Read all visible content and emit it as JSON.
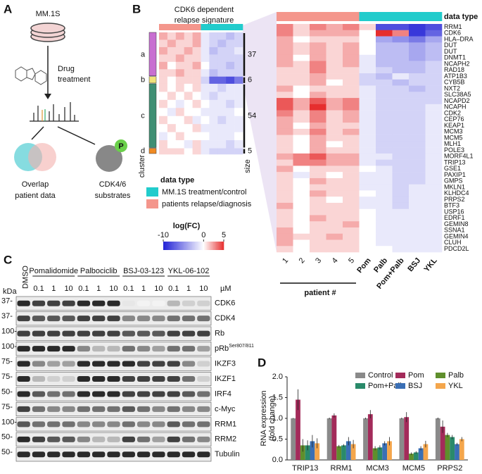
{
  "panels": [
    "A",
    "B",
    "C",
    "D"
  ],
  "panel_a": {
    "cells": "MM.1S",
    "treatment": [
      "Drug",
      "treatment"
    ],
    "overlap": [
      "Overlap",
      "patient data"
    ],
    "substrates": [
      "CDK4/6",
      "substrates"
    ],
    "phospho": "P"
  },
  "overview": {
    "title": [
      "CDK6 dependent",
      "relapse signature"
    ],
    "cluster_label": "cluster",
    "size_label": "size",
    "clusters": [
      {
        "label": "a",
        "size": 37,
        "color": "#c86fd1",
        "rows": [
          [
            2,
            1,
            2,
            1,
            2,
            -1,
            -2,
            -2,
            -3,
            -2
          ],
          [
            1,
            2,
            1,
            1,
            2,
            -1,
            -2,
            -3,
            -2,
            -2
          ],
          [
            2,
            1,
            1,
            2,
            1,
            -1,
            -3,
            -2,
            -2,
            -1
          ],
          [
            1,
            1,
            2,
            1,
            1,
            -1,
            -2,
            -2,
            -2,
            -2
          ],
          [
            2,
            0,
            1,
            1,
            2,
            0,
            -2,
            -2,
            -3,
            -2
          ],
          [
            1,
            1,
            2,
            1,
            1,
            -1,
            -3,
            -2,
            -2,
            -2
          ]
        ]
      },
      {
        "label": "b",
        "size": 6,
        "color": "#f1e27a",
        "rows": [
          [
            1,
            0,
            1,
            1,
            1,
            -2,
            -7,
            -7,
            -8,
            -6
          ]
        ]
      },
      {
        "label": "c",
        "size": 54,
        "color": "#3f8f73",
        "rows": [
          [
            1,
            0,
            1,
            0,
            1,
            -1,
            -1,
            -2,
            -1,
            -1
          ],
          [
            0,
            1,
            0,
            1,
            0,
            -1,
            -2,
            -1,
            -1,
            -1
          ],
          [
            1,
            0,
            -1,
            0,
            1,
            0,
            -1,
            -1,
            -2,
            -1
          ],
          [
            0,
            -1,
            1,
            0,
            0,
            -1,
            -1,
            -1,
            -1,
            0
          ],
          [
            1,
            0,
            0,
            1,
            -1,
            0,
            -1,
            -2,
            -1,
            -1
          ],
          [
            0,
            1,
            0,
            0,
            1,
            -1,
            -1,
            -1,
            -1,
            -1
          ],
          [
            -1,
            0,
            1,
            0,
            0,
            0,
            -1,
            -1,
            -1,
            0
          ],
          [
            1,
            0,
            0,
            -1,
            1,
            -1,
            -1,
            -1,
            -2,
            -1
          ]
        ]
      },
      {
        "label": "d",
        "size": 5,
        "color": "#f08a24",
        "rows": [
          [
            1,
            1,
            1,
            0,
            1,
            -1,
            -2,
            -2,
            -2,
            -2
          ]
        ]
      }
    ]
  },
  "legend": {
    "title": "data type",
    "entries": [
      {
        "name": "MM.1S treatment/control",
        "color": "#22cccc"
      },
      {
        "name": "patients relapse/diagnosis",
        "color": "#f4968c"
      }
    ],
    "scale_title": "log(FC)",
    "lim": [
      -10,
      5
    ],
    "ticks": [
      -10,
      0,
      5
    ],
    "low_color": "#2222d6",
    "high_color": "#e62e2e"
  },
  "heatmap": {
    "header_label": "data type",
    "columns": [
      "1",
      "2",
      "3",
      "4",
      "5",
      "Pom",
      "Palb",
      "Pom+Palb",
      "BSJ",
      "YKL"
    ],
    "column_types": [
      1,
      1,
      1,
      1,
      1,
      0,
      0,
      0,
      0,
      0
    ],
    "patient_axis": "patient #",
    "genes": [
      "RRM1",
      "CDK6",
      "HLA–DRA",
      "DUT",
      "DUT",
      "DNMT1",
      "NCAPH2",
      "RAD18",
      "ATP1B3",
      "CYB5B",
      "NXT2",
      "SLC38A5",
      "NCAPD2",
      "NCAPH",
      "CDK2",
      "CEP76",
      "KEAP1",
      "MCM3",
      "MCM5",
      "MLH1",
      "POLE3",
      "MORF4L1",
      "TRIP13",
      "GSE1",
      "PAXIP1",
      "GMPS",
      "MKLN1",
      "KLHDC4",
      "PRPS2",
      "BTF3",
      "USP16",
      "EDRF1",
      "GEMIN8",
      "SSNA1",
      "GEMIN4",
      "CLUH",
      "PDCD2L"
    ],
    "values": [
      [
        3,
        1,
        3,
        2,
        3,
        1,
        -8,
        -8,
        -9,
        -8
      ],
      [
        3,
        1,
        2,
        2,
        2,
        0,
        5,
        3,
        -9,
        -7
      ],
      [
        2,
        0,
        1,
        1,
        1,
        0,
        -4,
        -5,
        -6,
        -4
      ],
      [
        2,
        1,
        2,
        1,
        2,
        0,
        -3,
        -3,
        -4,
        -3
      ],
      [
        2,
        1,
        2,
        1,
        2,
        0,
        -3,
        -3,
        -4,
        -3
      ],
      [
        2,
        0,
        2,
        1,
        2,
        -1,
        -3,
        -3,
        -4,
        -3
      ],
      [
        2,
        1,
        3,
        1,
        2,
        -1,
        -3,
        -3,
        -3,
        -2
      ],
      [
        1,
        1,
        3,
        1,
        1,
        -1,
        -2,
        -3,
        -3,
        -2
      ],
      [
        1,
        1,
        2,
        1,
        1,
        -2,
        -3,
        -1,
        -2,
        -2
      ],
      [
        1,
        1,
        2,
        0,
        1,
        -2,
        -2,
        -3,
        -2,
        -2
      ],
      [
        2,
        0,
        1,
        1,
        1,
        -1,
        -2,
        -2,
        -3,
        -2
      ],
      [
        1,
        0,
        2,
        1,
        1,
        -1,
        -2,
        -2,
        -2,
        -2
      ],
      [
        4,
        2,
        4,
        2,
        3,
        -1,
        -2,
        -2,
        -2,
        -2
      ],
      [
        4,
        2,
        5,
        2,
        3,
        -1,
        -2,
        -2,
        -2,
        -1
      ],
      [
        3,
        1,
        3,
        1,
        2,
        -1,
        -2,
        -2,
        -2,
        -1
      ],
      [
        2,
        1,
        3,
        1,
        2,
        -1,
        -2,
        -2,
        -2,
        -1
      ],
      [
        2,
        0,
        2,
        1,
        1,
        -1,
        -2,
        -2,
        -2,
        -1
      ],
      [
        2,
        1,
        3,
        1,
        2,
        -1,
        -2,
        -2,
        -2,
        -1
      ],
      [
        1,
        0,
        2,
        1,
        1,
        -1,
        -2,
        -2,
        -2,
        -1
      ],
      [
        1,
        0,
        2,
        0,
        1,
        -1,
        -2,
        -2,
        -2,
        -1
      ],
      [
        1,
        0,
        2,
        1,
        1,
        -1,
        -2,
        -2,
        -2,
        -1
      ],
      [
        2,
        3,
        4,
        2,
        2,
        -1,
        -1,
        -2,
        -2,
        -1
      ],
      [
        1,
        3,
        3,
        2,
        2,
        -1,
        -2,
        -2,
        -2,
        -1
      ],
      [
        2,
        0,
        1,
        1,
        1,
        0,
        -1,
        -2,
        -2,
        -1
      ],
      [
        1,
        -1,
        1,
        0,
        1,
        -1,
        -1,
        -2,
        -2,
        -1
      ],
      [
        1,
        0,
        2,
        1,
        1,
        -1,
        -1,
        -2,
        -2,
        -1
      ],
      [
        1,
        0,
        1,
        1,
        1,
        -1,
        -1,
        -2,
        -1,
        -1
      ],
      [
        1,
        0,
        2,
        1,
        1,
        0,
        -1,
        -2,
        -1,
        -1
      ],
      [
        1,
        0,
        1,
        0,
        1,
        -1,
        -1,
        -2,
        -1,
        -1
      ],
      [
        2,
        0,
        1,
        1,
        1,
        -1,
        -1,
        -2,
        -1,
        -1
      ],
      [
        1,
        0,
        1,
        1,
        1,
        0,
        -1,
        -1,
        -1,
        -1
      ],
      [
        1,
        0,
        2,
        1,
        1,
        0,
        -1,
        -1,
        -1,
        -1
      ],
      [
        1,
        0,
        1,
        1,
        2,
        0,
        -1,
        -1,
        -1,
        -1
      ],
      [
        2,
        0,
        1,
        1,
        1,
        0,
        -1,
        -1,
        -1,
        -1
      ],
      [
        2,
        1,
        1,
        2,
        1,
        0,
        -1,
        -1,
        -1,
        -1
      ],
      [
        2,
        0,
        1,
        1,
        1,
        0,
        -1,
        -1,
        -1,
        -1
      ],
      [
        1,
        0,
        1,
        1,
        1,
        0,
        0,
        -1,
        -1,
        -1
      ]
    ]
  },
  "blot": {
    "kda": "kDa",
    "control": "DMSO",
    "unit": "µM",
    "doses": [
      0.1,
      1,
      10
    ],
    "groups": [
      "Pomalidomide",
      "Palbociclib",
      "BSJ-03-123",
      "YKL-06-102"
    ],
    "proteins": [
      {
        "label": "CDK6",
        "mw": "37-",
        "intensity": [
          0.9,
          0.8,
          0.8,
          0.8,
          0.9,
          0.9,
          0.9,
          0.1,
          0.05,
          0.05,
          0.3,
          0.2,
          0.2
        ]
      },
      {
        "label": "CDK4",
        "mw": "37-",
        "intensity": [
          0.8,
          0.7,
          0.7,
          0.7,
          0.8,
          0.8,
          0.8,
          0.5,
          0.5,
          0.5,
          0.6,
          0.6,
          0.6
        ]
      },
      {
        "label": "Rb",
        "mw": "100-",
        "intensity": [
          0.8,
          0.8,
          0.8,
          0.8,
          0.8,
          0.8,
          0.8,
          0.7,
          0.7,
          0.7,
          0.8,
          0.8,
          0.8
        ]
      },
      {
        "label": "pRb",
        "superscript": "Ser807/811",
        "mw": "100-",
        "intensity": [
          0.9,
          0.9,
          0.9,
          0.9,
          0.5,
          0.3,
          0.3,
          0.6,
          0.5,
          0.4,
          0.6,
          0.6,
          0.4
        ]
      },
      {
        "label": "IKZF3",
        "mw": "75-",
        "intensity": [
          0.9,
          0.5,
          0.4,
          0.4,
          0.9,
          0.9,
          0.9,
          0.9,
          0.8,
          0.8,
          0.8,
          0.5,
          0.2
        ]
      },
      {
        "label": "IKZF1",
        "mw": "75-",
        "intensity": [
          0.9,
          0.3,
          0.2,
          0.2,
          0.9,
          0.9,
          0.9,
          0.8,
          0.8,
          0.8,
          0.8,
          0.6,
          0.2
        ]
      },
      {
        "label": "IRF4",
        "mw": "50-",
        "intensity": [
          0.9,
          0.7,
          0.6,
          0.6,
          0.9,
          0.9,
          0.9,
          0.8,
          0.8,
          0.8,
          0.8,
          0.7,
          0.6
        ]
      },
      {
        "label": "c-Myc",
        "mw": "75-",
        "intensity": [
          0.8,
          0.6,
          0.5,
          0.5,
          0.6,
          0.6,
          0.6,
          0.7,
          0.6,
          0.5,
          0.6,
          0.5,
          0.5
        ]
      },
      {
        "label": "RRM1",
        "mw": "100-",
        "intensity": [
          0.7,
          0.6,
          0.6,
          0.6,
          0.5,
          0.5,
          0.5,
          0.6,
          0.5,
          0.5,
          0.7,
          0.6,
          0.6
        ]
      },
      {
        "label": "RRM2",
        "mw": "50-",
        "intensity": [
          0.9,
          0.8,
          0.7,
          0.7,
          0.5,
          0.3,
          0.3,
          0.8,
          0.6,
          0.4,
          0.8,
          0.6,
          0.5
        ]
      },
      {
        "label": "Tubulin",
        "mw": "50-",
        "intensity": [
          0.9,
          0.9,
          0.9,
          0.9,
          0.9,
          0.9,
          0.9,
          0.9,
          0.9,
          0.9,
          0.9,
          0.9,
          0.9
        ]
      }
    ]
  },
  "chart_data": {
    "type": "bar",
    "ylabel": [
      "RNA expression",
      "(fold change)"
    ],
    "categories": [
      "TRIP13",
      "RRM1",
      "MCM3",
      "MCM5",
      "PRPS2"
    ],
    "series": [
      {
        "name": "Control",
        "color": "#8a8a8a",
        "values": [
          1.0,
          1.0,
          1.0,
          1.0,
          1.0
        ],
        "errors": [
          0.01,
          0.02,
          0.02,
          0.02,
          0.02
        ]
      },
      {
        "name": "Pom",
        "color": "#a32b5a",
        "values": [
          1.45,
          1.07,
          1.1,
          1.03,
          0.8
        ],
        "errors": [
          0.25,
          0.05,
          0.1,
          0.12,
          0.15
        ]
      },
      {
        "name": "Palb",
        "color": "#5f8f2c",
        "values": [
          0.35,
          0.33,
          0.28,
          0.15,
          0.6
        ],
        "errors": [
          0.15,
          0.03,
          0.05,
          0.03,
          0.05
        ]
      },
      {
        "name": "Pom+Palb",
        "color": "#2a8a6a",
        "values": [
          0.35,
          0.35,
          0.3,
          0.18,
          0.55
        ],
        "errors": [
          0.12,
          0.03,
          0.05,
          0.03,
          0.05
        ]
      },
      {
        "name": "BSJ",
        "color": "#3a6fb5",
        "values": [
          0.45,
          0.45,
          0.4,
          0.28,
          0.38
        ],
        "errors": [
          0.15,
          0.1,
          0.05,
          0.05,
          0.03
        ]
      },
      {
        "name": "YKL",
        "color": "#f4a64c",
        "values": [
          0.4,
          0.38,
          0.45,
          0.38,
          0.5
        ],
        "errors": [
          0.12,
          0.1,
          0.1,
          0.08,
          0.05
        ]
      }
    ],
    "ylim": [
      0,
      2
    ],
    "yticks": [
      {
        "value": 0,
        "label": "0.0"
      },
      {
        "value": 0.5,
        "label": "0.5"
      },
      {
        "value": 1,
        "label": "1.0"
      },
      {
        "value": 1.5,
        "label": "1.5"
      },
      {
        "value": 2,
        "label": "2.0"
      }
    ]
  }
}
